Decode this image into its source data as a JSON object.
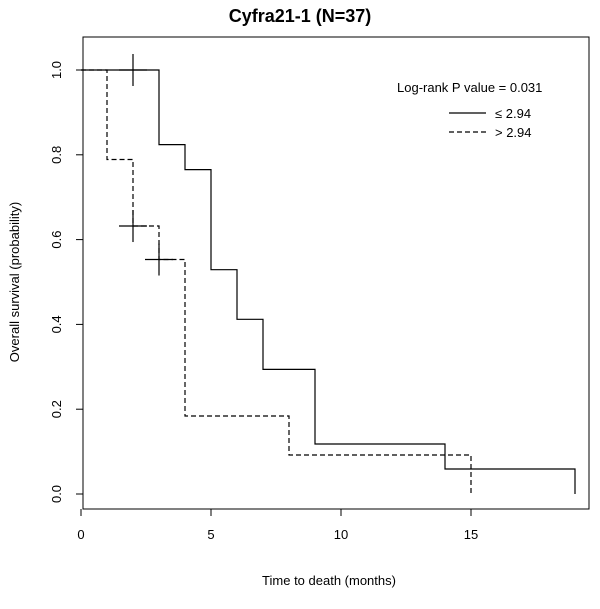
{
  "chart_data": {
    "type": "line",
    "subtype": "kaplan-meier",
    "title": "Cyfra21-1 (N=37)",
    "xlabel": "Time to death (months)",
    "ylabel": "Overall survival (probability)",
    "xlim": [
      0,
      19.5
    ],
    "ylim": [
      0,
      1.0
    ],
    "x_ticks": [
      0,
      5,
      10,
      15
    ],
    "x_tick_labels": [
      "0",
      "5",
      "10",
      "15"
    ],
    "y_ticks": [
      0.0,
      0.2,
      0.4,
      0.6,
      0.8,
      1.0
    ],
    "y_tick_labels": [
      "0.0",
      "0.2",
      "0.4",
      "0.6",
      "0.8",
      "1.0"
    ],
    "annotation": {
      "label": "Log-rank P value =",
      "value": "0.031"
    },
    "series": [
      {
        "name": "≤ 2.94",
        "line_style": "solid",
        "steps": [
          [
            0,
            1.0
          ],
          [
            3,
            0.824
          ],
          [
            4,
            0.765
          ],
          [
            5,
            0.529
          ],
          [
            6,
            0.412
          ],
          [
            7,
            0.294
          ],
          [
            9,
            0.118
          ],
          [
            14,
            0.059
          ],
          [
            19,
            0.0
          ]
        ],
        "end_x": 19,
        "censored": [
          [
            2,
            1.0
          ]
        ]
      },
      {
        "name": "> 2.94",
        "line_style": "dashed",
        "steps": [
          [
            0,
            1.0
          ],
          [
            1,
            0.789
          ],
          [
            2,
            0.632
          ],
          [
            3,
            0.553
          ],
          [
            4,
            0.184
          ],
          [
            8,
            0.092
          ],
          [
            15,
            0.0
          ]
        ],
        "end_x": 15,
        "censored": [
          [
            2,
            0.632
          ],
          [
            3,
            0.553
          ]
        ]
      }
    ]
  }
}
